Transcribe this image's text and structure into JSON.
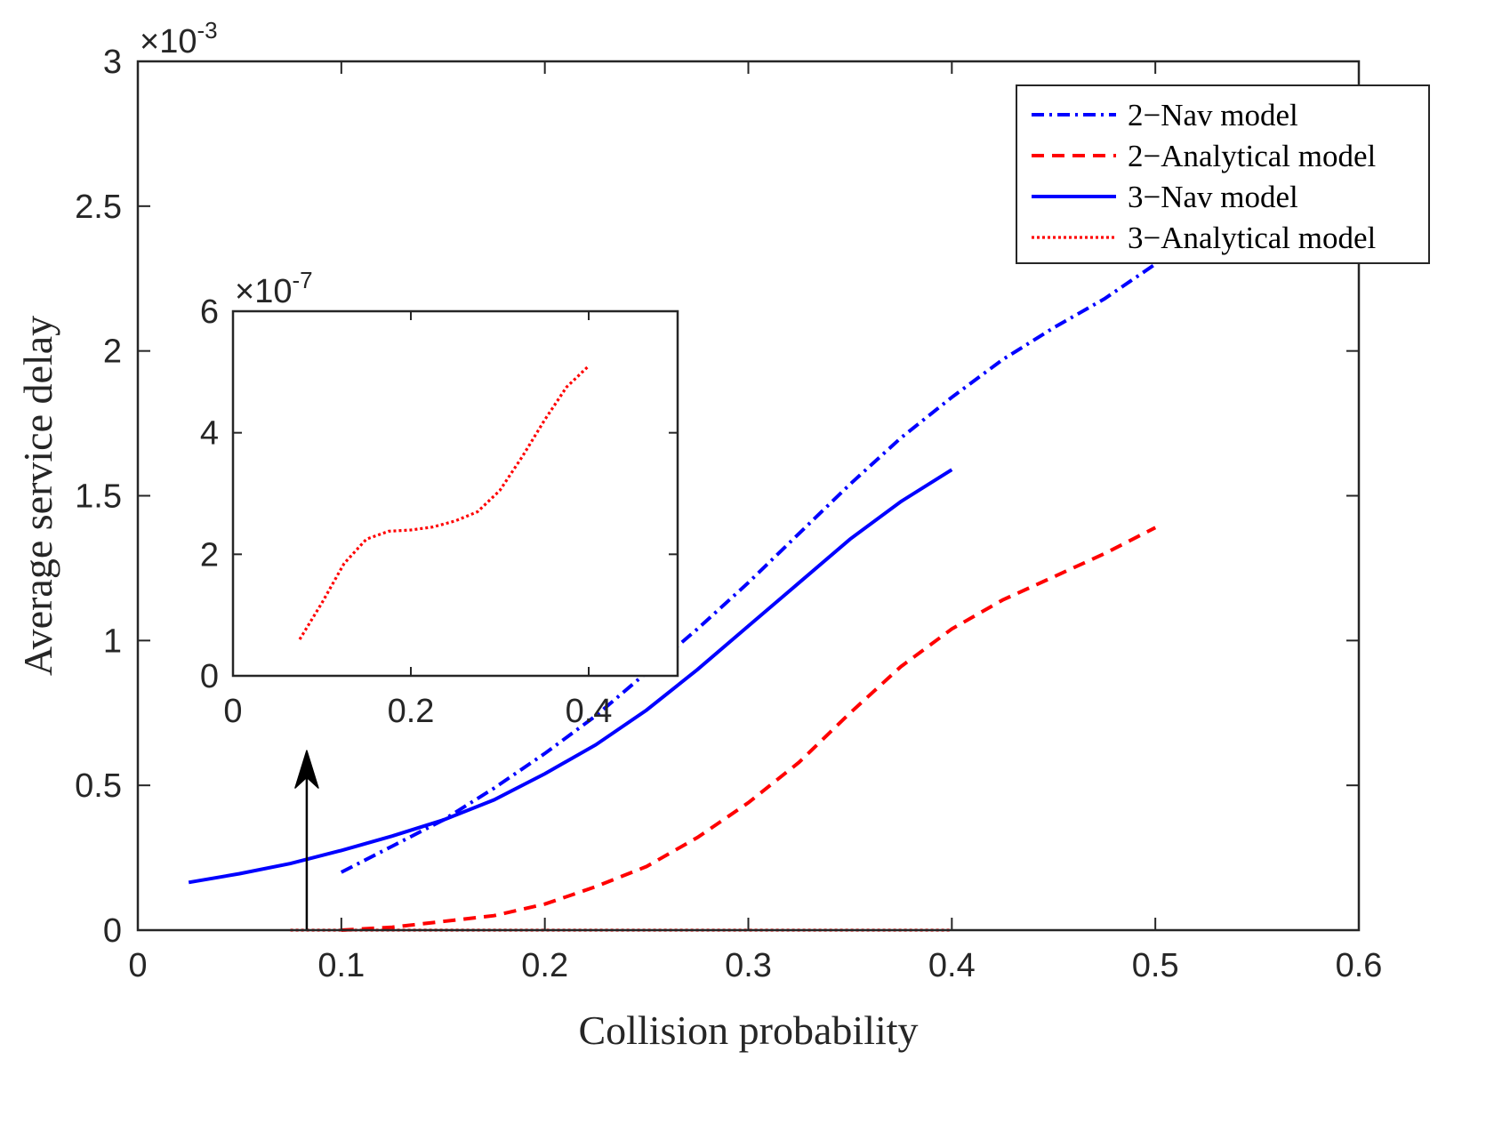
{
  "chart_data": {
    "type": "line",
    "title": "",
    "xlabel": "Collision probability",
    "ylabel": "Average service delay",
    "xlim": [
      0,
      0.6
    ],
    "ylim": [
      0,
      3
    ],
    "y_multiplier": {
      "base": "×10",
      "exponent": "-3"
    },
    "xticks": [
      "0",
      "0.1",
      "0.2",
      "0.3",
      "0.4",
      "0.5",
      "0.6"
    ],
    "yticks": [
      "0",
      "0.5",
      "1",
      "1.5",
      "2",
      "2.5",
      "3"
    ],
    "grid": false,
    "legend_position": "top-right",
    "series": [
      {
        "name": "2−Nav model",
        "style": "dashdot",
        "color": "#0000ff",
        "x": [
          0.1,
          0.125,
          0.15,
          0.175,
          0.2,
          0.225,
          0.25,
          0.275,
          0.3,
          0.325,
          0.35,
          0.375,
          0.4,
          0.425,
          0.45,
          0.475,
          0.5
        ],
        "y": [
          0.2,
          0.29,
          0.38,
          0.49,
          0.61,
          0.74,
          0.89,
          1.04,
          1.2,
          1.37,
          1.54,
          1.7,
          1.84,
          1.97,
          2.08,
          2.18,
          2.3
        ]
      },
      {
        "name": "2−Analytical model",
        "style": "dashed",
        "color": "#ff0000",
        "x": [
          0.1,
          0.125,
          0.15,
          0.175,
          0.2,
          0.225,
          0.25,
          0.275,
          0.3,
          0.325,
          0.35,
          0.375,
          0.4,
          0.425,
          0.45,
          0.475,
          0.5
        ],
        "y": [
          0.0,
          0.01,
          0.03,
          0.05,
          0.09,
          0.15,
          0.22,
          0.32,
          0.44,
          0.58,
          0.75,
          0.91,
          1.04,
          1.14,
          1.22,
          1.3,
          1.39
        ]
      },
      {
        "name": "3−Nav model",
        "style": "solid",
        "color": "#0000ff",
        "x": [
          0.025,
          0.05,
          0.075,
          0.1,
          0.125,
          0.15,
          0.175,
          0.2,
          0.225,
          0.25,
          0.275,
          0.3,
          0.325,
          0.35,
          0.375,
          0.4
        ],
        "y": [
          0.165,
          0.195,
          0.23,
          0.275,
          0.325,
          0.38,
          0.45,
          0.54,
          0.64,
          0.76,
          0.9,
          1.05,
          1.2,
          1.35,
          1.48,
          1.59
        ]
      },
      {
        "name": "3−Analytical model",
        "style": "dotted",
        "color": "#ff0000",
        "x": [
          0.075,
          0.1,
          0.15,
          0.2,
          0.25,
          0.3,
          0.35,
          0.4
        ],
        "y": [
          0.0,
          0.0,
          0.0,
          0.0,
          0.0,
          0.0,
          0.0,
          0.0
        ]
      }
    ],
    "annotations": [
      {
        "type": "arrow",
        "from": {
          "x": 0.083,
          "y": 0.0
        },
        "to": {
          "x": 0.083,
          "y": 0.62
        },
        "color": "#000000"
      }
    ],
    "inset": {
      "type": "line",
      "xlim": [
        0,
        0.5
      ],
      "ylim": [
        0,
        6
      ],
      "y_multiplier": {
        "base": "×10",
        "exponent": "-7"
      },
      "xticks": [
        "0",
        "0.2",
        "0.4"
      ],
      "yticks": [
        "0",
        "2",
        "4",
        "6"
      ],
      "series": [
        {
          "name": "3−Analytical model",
          "style": "dotted",
          "color": "#ff0000",
          "x": [
            0.075,
            0.1,
            0.125,
            0.15,
            0.175,
            0.2,
            0.225,
            0.25,
            0.275,
            0.3,
            0.325,
            0.35,
            0.375,
            0.4
          ],
          "y": [
            0.6,
            1.2,
            1.85,
            2.25,
            2.38,
            2.4,
            2.45,
            2.55,
            2.7,
            3.05,
            3.6,
            4.2,
            4.75,
            5.1
          ]
        }
      ]
    }
  }
}
